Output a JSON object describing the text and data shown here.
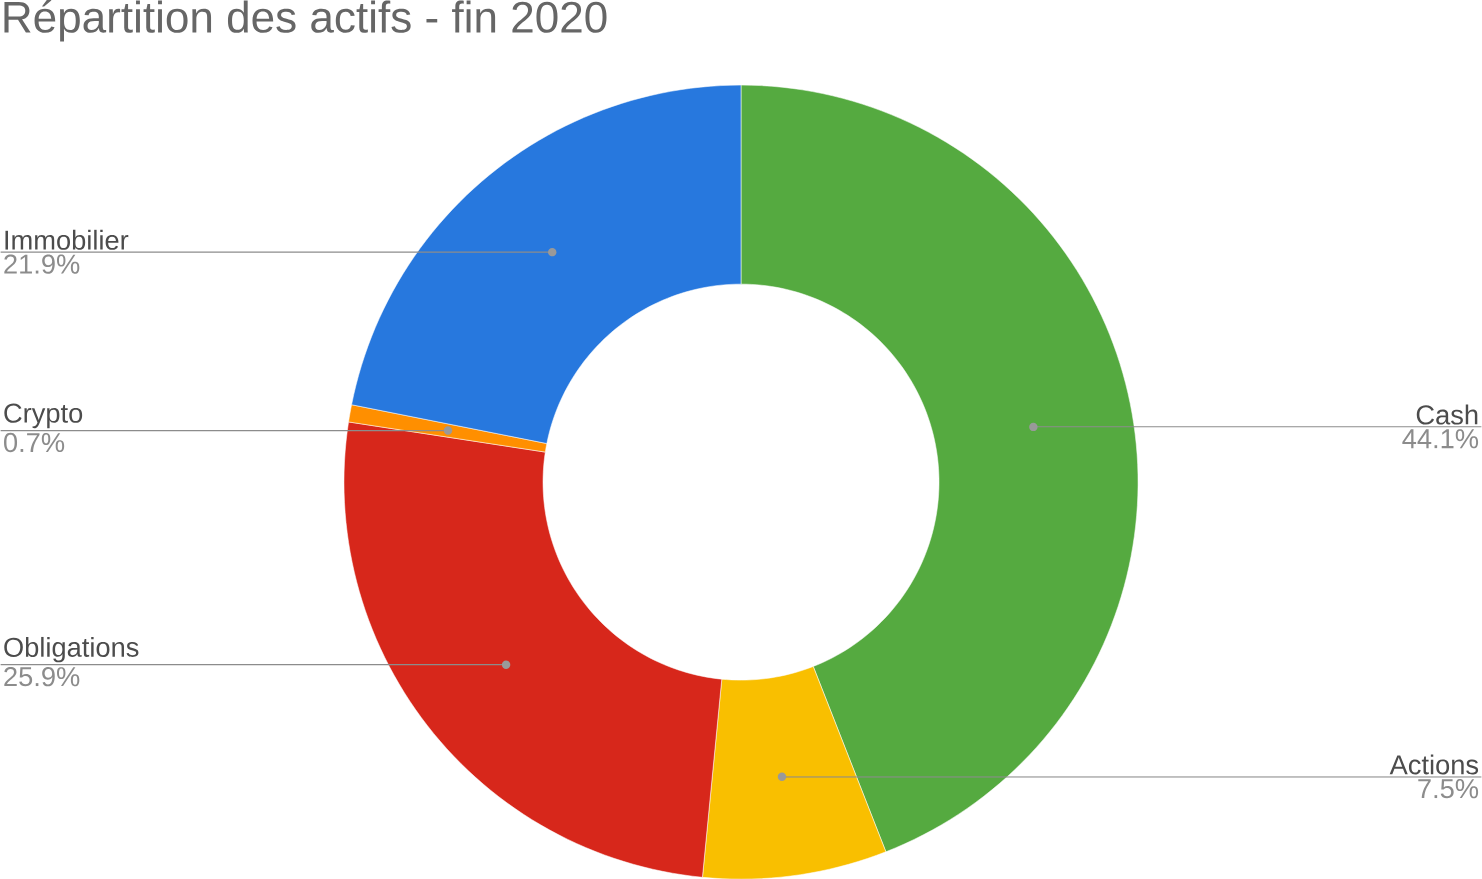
{
  "chart_data": {
    "type": "donut",
    "title": "Répartition des actifs - fin 2020",
    "categories": [
      "Cash",
      "Actions",
      "Obligations",
      "Crypto",
      "Immobilier"
    ],
    "values": [
      44.1,
      7.5,
      25.9,
      0.7,
      21.9
    ],
    "colors": [
      "#55aa40",
      "#f9bf00",
      "#d7271b",
      "#ff8f00",
      "#2778de"
    ],
    "value_labels": [
      "44.1%",
      "7.5%",
      "25.9%",
      "0.7%",
      "21.9%"
    ]
  }
}
